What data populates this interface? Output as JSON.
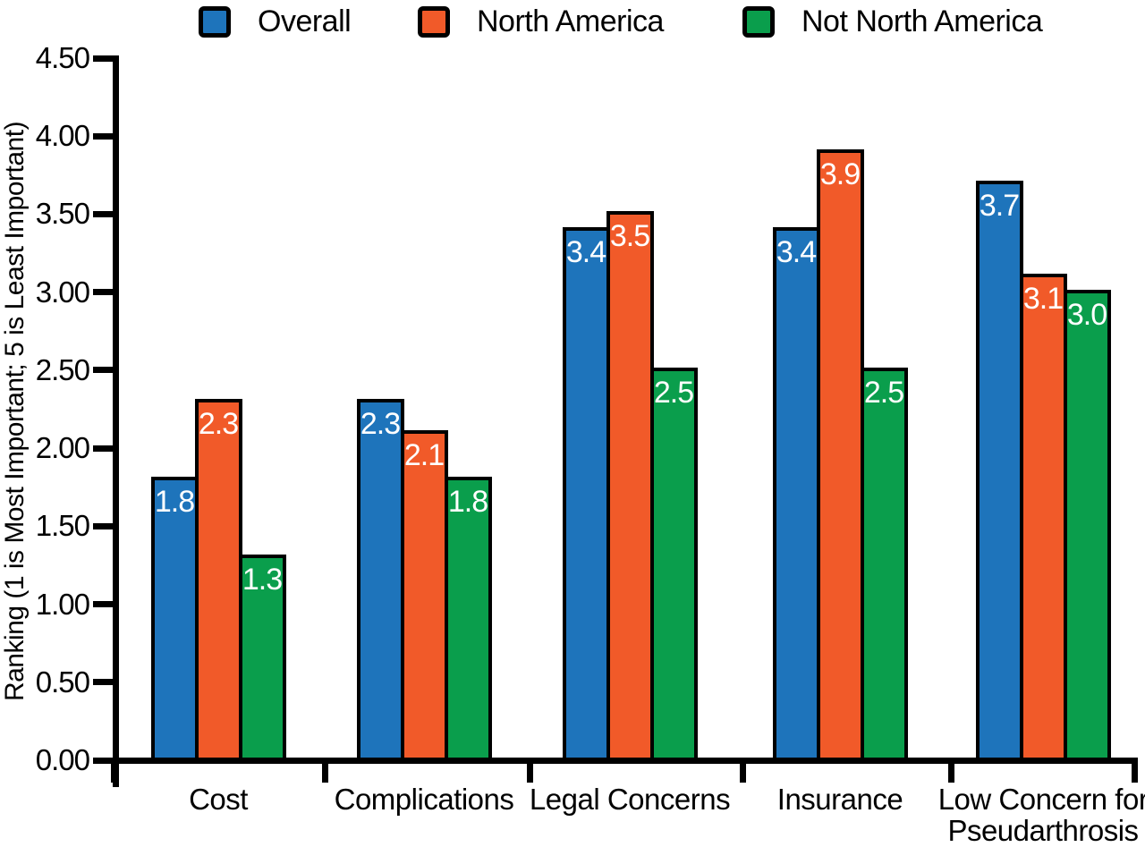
{
  "chart_data": {
    "type": "bar",
    "title": "",
    "xlabel": "",
    "ylabel": "Ranking (1 is Most Important; 5 is Least Important)",
    "ylim": [
      0,
      4.5
    ],
    "ytick_step": 0.5,
    "ytick_labels": [
      "0.00",
      "0.50",
      "1.00",
      "1.50",
      "2.00",
      "2.50",
      "3.00",
      "3.50",
      "4.00",
      "4.50"
    ],
    "grid": false,
    "legend_position": "top",
    "categories": [
      {
        "label": "Cost",
        "lines": [
          "Cost"
        ]
      },
      {
        "label": "Complications",
        "lines": [
          "Complications"
        ]
      },
      {
        "label": "Legal Concerns",
        "lines": [
          "Legal Concerns"
        ]
      },
      {
        "label": "Insurance",
        "lines": [
          "Insurance"
        ]
      },
      {
        "label": "Low Concern for Pseudarthrosis",
        "lines": [
          "Low Concern for",
          "Pseudarthrosis"
        ]
      }
    ],
    "series": [
      {
        "name": "Overall",
        "color": "#1E74BB",
        "values": [
          1.8,
          2.3,
          3.4,
          3.4,
          3.7
        ]
      },
      {
        "name": "North America",
        "color": "#F15A29",
        "values": [
          2.3,
          2.1,
          3.5,
          3.9,
          3.1
        ]
      },
      {
        "name": "Not North America",
        "color": "#0A9E4C",
        "values": [
          1.3,
          1.8,
          2.5,
          2.5,
          3.0
        ]
      }
    ],
    "value_label_format": "one_decimal",
    "value_label_color": "#FFFFFF",
    "axis_color": "#000000"
  }
}
